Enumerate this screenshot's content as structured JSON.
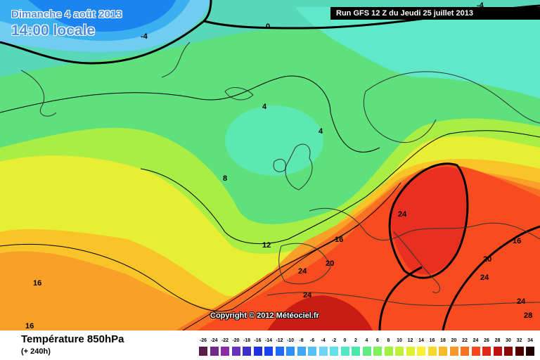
{
  "header": {
    "date_label": "Dimanche 4 août 2013",
    "time_label": "14:00 locale",
    "run_label": "Run GFS 12 Z du Jeudi 25 juillet 2013"
  },
  "copyright": "Copyright © 2012 Météociel.fr",
  "footer": {
    "variable_title": "Température 850hPa",
    "lead_time": "(+ 240h)"
  },
  "legend": {
    "values": [
      "-26",
      "-24",
      "-22",
      "-20",
      "-18",
      "-16",
      "-14",
      "-12",
      "-10",
      "-8",
      "-6",
      "-4",
      "-2",
      "0",
      "2",
      "4",
      "6",
      "8",
      "10",
      "12",
      "14",
      "16",
      "18",
      "20",
      "22",
      "24",
      "26",
      "28",
      "30",
      "32",
      "34"
    ],
    "colors": [
      "#5a1a4a",
      "#6e2a86",
      "#8a2aa6",
      "#6630b8",
      "#3c30c8",
      "#2030e0",
      "#1844f0",
      "#1c6cf8",
      "#2c90f8",
      "#40a8f8",
      "#58c0f8",
      "#70d4f8",
      "#60e0e8",
      "#50e8c8",
      "#48e8a8",
      "#60ec80",
      "#80f058",
      "#a0f040",
      "#c0f038",
      "#e0f030",
      "#f8f030",
      "#f8d828",
      "#f8b828",
      "#f89828",
      "#f87020",
      "#f84820",
      "#e02818",
      "#c01010",
      "#8c0808",
      "#500000",
      "#200000"
    ]
  },
  "contour_labels": [
    {
      "text": "-4"
    },
    {
      "text": "-4"
    },
    {
      "text": "0"
    },
    {
      "text": "4"
    },
    {
      "text": "4"
    },
    {
      "text": "8"
    },
    {
      "text": "12"
    },
    {
      "text": "16"
    },
    {
      "text": "16"
    },
    {
      "text": "16"
    },
    {
      "text": "16"
    },
    {
      "text": "20"
    },
    {
      "text": "20"
    },
    {
      "text": "24"
    },
    {
      "text": "24"
    },
    {
      "text": "24"
    },
    {
      "text": "24"
    },
    {
      "text": "24"
    },
    {
      "text": "28"
    }
  ]
}
